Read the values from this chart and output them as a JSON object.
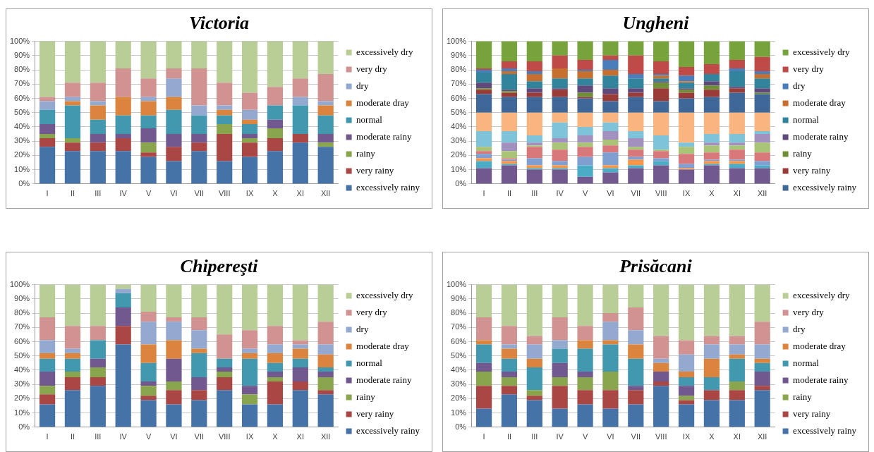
{
  "chart_data": [
    {
      "type": "bar",
      "title": "Victoria",
      "stacked": true,
      "legend": "right",
      "grid": "y",
      "categories": [
        "I",
        "II",
        "III",
        "IV",
        "V",
        "VI",
        "VII",
        "VIII",
        "IX",
        "X",
        "XI",
        "XII"
      ],
      "ylim": [
        0,
        100
      ],
      "yticks": [
        {
          "value": 0,
          "label": "0%"
        },
        {
          "value": 10,
          "label": "10%"
        },
        {
          "value": 20,
          "label": "20%"
        },
        {
          "value": 30,
          "label": "30%"
        },
        {
          "value": 40,
          "label": "40%"
        },
        {
          "value": 50,
          "label": "50%"
        },
        {
          "value": 60,
          "label": "60%"
        },
        {
          "value": 70,
          "label": "70%"
        },
        {
          "value": 80,
          "label": "80%"
        },
        {
          "value": 90,
          "label": "90%"
        },
        {
          "value": 100,
          "label": "100%"
        }
      ],
      "series": [
        {
          "name": "excessively rainy",
          "color": "#4572a7",
          "values": [
            26,
            23,
            23,
            23,
            19,
            16,
            23,
            16,
            19,
            23,
            29,
            26
          ]
        },
        {
          "name": "very rainy",
          "color": "#aa4643",
          "values": [
            6,
            6,
            6,
            9,
            3,
            10,
            6,
            19,
            10,
            9,
            6,
            0
          ]
        },
        {
          "name": "rainy",
          "color": "#89a54e",
          "values": [
            3,
            3,
            0,
            0,
            7,
            0,
            0,
            7,
            3,
            7,
            0,
            3
          ]
        },
        {
          "name": "moderate rainy",
          "color": "#71588f",
          "values": [
            7,
            0,
            6,
            3,
            10,
            9,
            6,
            0,
            3,
            6,
            0,
            6
          ]
        },
        {
          "name": "normal",
          "color": "#4198af",
          "values": [
            10,
            23,
            10,
            13,
            9,
            17,
            13,
            6,
            7,
            10,
            20,
            13
          ]
        },
        {
          "name": "moderate dray",
          "color": "#db843d",
          "values": [
            0,
            3,
            10,
            13,
            10,
            9,
            0,
            4,
            3,
            0,
            0,
            7
          ]
        },
        {
          "name": "dry",
          "color": "#93a9cf",
          "values": [
            6,
            3,
            3,
            0,
            3,
            13,
            7,
            3,
            7,
            0,
            6,
            3
          ]
        },
        {
          "name": "very dry",
          "color": "#d19392",
          "values": [
            3,
            10,
            13,
            20,
            13,
            7,
            26,
            16,
            12,
            13,
            13,
            19
          ]
        },
        {
          "name": "excessively dry",
          "color": "#b9cd96",
          "values": [
            39,
            29,
            29,
            19,
            26,
            19,
            19,
            29,
            36,
            32,
            26,
            23
          ]
        }
      ]
    },
    {
      "type": "bar",
      "title": "Ungheni",
      "stacked": true,
      "legend": "right",
      "grid": "y",
      "categories": [
        "I",
        "II",
        "III",
        "IV",
        "V",
        "VI",
        "VII",
        "VIII",
        "IX",
        "X",
        "XI",
        "XII"
      ],
      "ylim": [
        0,
        100
      ],
      "yticks": [
        {
          "value": 0,
          "label": "0%"
        },
        {
          "value": 10,
          "label": "10%"
        },
        {
          "value": 20,
          "label": "20%"
        },
        {
          "value": 30,
          "label": "30%"
        },
        {
          "value": 40,
          "label": "40%"
        },
        {
          "value": 50,
          "label": "50%"
        },
        {
          "value": 60,
          "label": "60%"
        },
        {
          "value": 70,
          "label": "70%"
        },
        {
          "value": 80,
          "label": "80%"
        },
        {
          "value": 90,
          "label": "90%"
        },
        {
          "value": 100,
          "label": "100%"
        }
      ],
      "series": [
        {
          "color": "#71588f",
          "values": [
            11,
            13,
            10,
            10,
            5,
            8,
            11,
            13,
            10,
            13,
            11,
            11
          ]
        },
        {
          "color": "#4bacc6",
          "values": [
            5,
            1,
            1,
            1,
            8,
            3,
            2,
            3,
            0,
            1,
            3,
            2
          ]
        },
        {
          "color": "#f79646",
          "values": [
            2,
            2,
            2,
            2,
            0,
            2,
            4,
            0,
            1,
            2,
            2,
            0
          ]
        },
        {
          "color": "#7f9fd1",
          "values": [
            3,
            1,
            5,
            3,
            6,
            9,
            2,
            2,
            3,
            1,
            1,
            3
          ]
        },
        {
          "color": "#d9787a",
          "values": [
            2,
            1,
            8,
            8,
            7,
            5,
            5,
            5,
            7,
            5,
            7,
            6
          ]
        },
        {
          "color": "#a9c477",
          "values": [
            3,
            5,
            1,
            5,
            3,
            4,
            2,
            1,
            5,
            5,
            3,
            7
          ]
        },
        {
          "color": "#a291bf",
          "values": [
            0,
            6,
            2,
            3,
            5,
            6,
            6,
            0,
            0,
            2,
            2,
            6
          ]
        },
        {
          "color": "#7fc3d8",
          "values": [
            11,
            8,
            5,
            11,
            6,
            6,
            5,
            10,
            3,
            6,
            6,
            2
          ]
        },
        {
          "color": "#fab47f",
          "values": [
            13,
            13,
            16,
            7,
            10,
            7,
            13,
            16,
            21,
            15,
            15,
            13
          ]
        },
        {
          "name": "excessively rainy",
          "color": "#3f6797",
          "values": [
            13,
            11,
            11,
            11,
            10,
            8,
            11,
            8,
            10,
            11,
            14,
            13
          ]
        },
        {
          "name": "very rainy",
          "color": "#9b3b38",
          "values": [
            3,
            3,
            3,
            5,
            1,
            5,
            3,
            9,
            4,
            5,
            3,
            0
          ]
        },
        {
          "name": "rainy",
          "color": "#6f8f37",
          "values": [
            1,
            1,
            0,
            0,
            3,
            0,
            0,
            4,
            2,
            3,
            0,
            1
          ]
        },
        {
          "name": "moderate rainy",
          "color": "#604a7b",
          "values": [
            4,
            1,
            3,
            1,
            5,
            4,
            3,
            1,
            1,
            3,
            1,
            3
          ]
        },
        {
          "name": "normal",
          "color": "#31849b",
          "values": [
            7,
            11,
            5,
            7,
            5,
            9,
            7,
            2,
            4,
            5,
            11,
            7
          ]
        },
        {
          "name": "moderate dray",
          "color": "#c66f2e",
          "values": [
            0,
            2,
            5,
            7,
            5,
            4,
            0,
            2,
            1,
            0,
            0,
            3
          ]
        },
        {
          "name": "dry",
          "color": "#4a7ebb",
          "values": [
            2,
            2,
            2,
            0,
            1,
            7,
            3,
            1,
            4,
            0,
            2,
            2
          ]
        },
        {
          "name": "very dry",
          "color": "#be4b48",
          "values": [
            1,
            5,
            7,
            9,
            7,
            3,
            13,
            9,
            6,
            7,
            6,
            10
          ]
        },
        {
          "name": "excessively dry",
          "color": "#77a33c",
          "values": [
            19,
            14,
            14,
            10,
            13,
            10,
            10,
            14,
            18,
            16,
            13,
            11
          ]
        }
      ]
    },
    {
      "type": "bar",
      "title": "Chipereşti",
      "stacked": true,
      "legend": "right",
      "grid": "y",
      "categories": [
        "I",
        "II",
        "III",
        "IV",
        "V",
        "VI",
        "VII",
        "VIII",
        "IX",
        "X",
        "XI",
        "XII"
      ],
      "ylim": [
        0,
        100
      ],
      "yticks": [
        {
          "value": 0,
          "label": "0%"
        },
        {
          "value": 10,
          "label": "10%"
        },
        {
          "value": 20,
          "label": "20%"
        },
        {
          "value": 30,
          "label": "30%"
        },
        {
          "value": 40,
          "label": "40%"
        },
        {
          "value": 50,
          "label": "50%"
        },
        {
          "value": 60,
          "label": "60%"
        },
        {
          "value": 70,
          "label": "70%"
        },
        {
          "value": 80,
          "label": "80%"
        },
        {
          "value": 90,
          "label": "90%"
        },
        {
          "value": 100,
          "label": "100%"
        }
      ],
      "series": [
        {
          "name": "excessively rainy",
          "color": "#4572a7",
          "values": [
            16,
            26,
            29,
            58,
            19,
            16,
            19,
            26,
            16,
            16,
            26,
            23
          ]
        },
        {
          "name": "very rainy",
          "color": "#aa4643",
          "values": [
            7,
            9,
            6,
            13,
            3,
            10,
            7,
            9,
            0,
            16,
            6,
            3
          ]
        },
        {
          "name": "rainy",
          "color": "#89a54e",
          "values": [
            6,
            4,
            7,
            0,
            7,
            6,
            0,
            4,
            7,
            3,
            0,
            9
          ]
        },
        {
          "name": "moderate rainy",
          "color": "#71588f",
          "values": [
            10,
            0,
            6,
            13,
            3,
            16,
            9,
            3,
            6,
            4,
            10,
            4
          ]
        },
        {
          "name": "normal",
          "color": "#4198af",
          "values": [
            9,
            9,
            13,
            10,
            13,
            0,
            17,
            6,
            19,
            6,
            6,
            3
          ]
        },
        {
          "name": "moderate dray",
          "color": "#db843d",
          "values": [
            4,
            4,
            0,
            0,
            13,
            13,
            3,
            0,
            4,
            7,
            7,
            9
          ]
        },
        {
          "name": "dry",
          "color": "#93a9cf",
          "values": [
            9,
            3,
            0,
            3,
            16,
            13,
            13,
            0,
            3,
            6,
            3,
            7
          ]
        },
        {
          "name": "very dry",
          "color": "#d19392",
          "values": [
            16,
            16,
            10,
            0,
            7,
            3,
            9,
            17,
            13,
            13,
            3,
            16
          ]
        },
        {
          "name": "excessively dry",
          "color": "#b9cd96",
          "values": [
            23,
            29,
            29,
            3,
            19,
            23,
            23,
            35,
            32,
            29,
            39,
            26
          ]
        }
      ]
    },
    {
      "type": "bar",
      "title": "Prisăcani",
      "stacked": true,
      "legend": "right",
      "grid": "y",
      "categories": [
        "I",
        "II",
        "III",
        "IV",
        "V",
        "VI",
        "VII",
        "VIII",
        "IX",
        "X",
        "XI",
        "XII"
      ],
      "ylim": [
        0,
        100
      ],
      "yticks": [
        {
          "value": 0,
          "label": "0%"
        },
        {
          "value": 10,
          "label": "10%"
        },
        {
          "value": 20,
          "label": "20%"
        },
        {
          "value": 30,
          "label": "30%"
        },
        {
          "value": 40,
          "label": "40%"
        },
        {
          "value": 50,
          "label": "50%"
        },
        {
          "value": 60,
          "label": "60%"
        },
        {
          "value": 70,
          "label": "70%"
        },
        {
          "value": 80,
          "label": "80%"
        },
        {
          "value": 90,
          "label": "90%"
        },
        {
          "value": 100,
          "label": "100%"
        }
      ],
      "series": [
        {
          "name": "excessively rainy",
          "color": "#4572a7",
          "values": [
            13,
            23,
            19,
            13,
            16,
            13,
            16,
            29,
            16,
            19,
            19,
            26
          ]
        },
        {
          "name": "very rainy",
          "color": "#aa4643",
          "values": [
            16,
            6,
            3,
            16,
            10,
            13,
            10,
            3,
            3,
            7,
            7,
            3
          ]
        },
        {
          "name": "rainy",
          "color": "#89a54e",
          "values": [
            10,
            6,
            4,
            6,
            9,
            13,
            0,
            0,
            3,
            0,
            6,
            0
          ]
        },
        {
          "name": "moderate rainy",
          "color": "#71588f",
          "values": [
            6,
            4,
            0,
            10,
            4,
            0,
            3,
            7,
            7,
            0,
            0,
            10
          ]
        },
        {
          "name": "normal",
          "color": "#4198af",
          "values": [
            13,
            9,
            16,
            10,
            16,
            19,
            19,
            0,
            6,
            9,
            16,
            6
          ]
        },
        {
          "name": "moderate dray",
          "color": "#db843d",
          "values": [
            3,
            7,
            6,
            0,
            6,
            3,
            10,
            6,
            4,
            13,
            3,
            3
          ]
        },
        {
          "name": "dry",
          "color": "#93a9cf",
          "values": [
            0,
            3,
            10,
            6,
            0,
            13,
            10,
            3,
            12,
            10,
            7,
            10
          ]
        },
        {
          "name": "very dry",
          "color": "#d19392",
          "values": [
            16,
            13,
            6,
            16,
            10,
            6,
            16,
            16,
            10,
            6,
            6,
            16
          ]
        },
        {
          "name": "excessively dry",
          "color": "#b9cd96",
          "values": [
            23,
            29,
            36,
            23,
            29,
            20,
            16,
            36,
            39,
            36,
            36,
            26
          ]
        }
      ]
    }
  ]
}
